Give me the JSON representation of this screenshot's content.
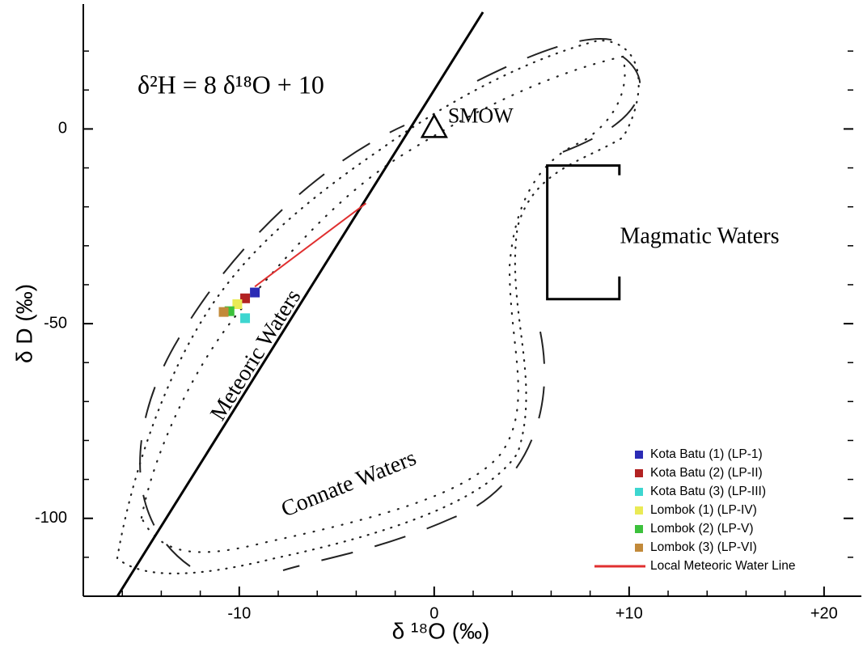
{
  "chart_data": {
    "type": "scatter",
    "xlabel": "δ ¹⁸O (‰)",
    "ylabel": "δ D (‰)",
    "xlim": [
      -18,
      21.5
    ],
    "ylim": [
      -120,
      30
    ],
    "xticks": [
      -10,
      0,
      {
        "value": 10,
        "label": "+10"
      },
      {
        "value": 20,
        "label": "+20"
      }
    ],
    "yticks": [
      -100,
      -50,
      0
    ],
    "xminorticks": [
      -16,
      -14,
      -12,
      -8,
      -6,
      -4,
      -2,
      2,
      4,
      6,
      8,
      12,
      14,
      16,
      18
    ],
    "yminorticks": [
      -110,
      -90,
      -80,
      -70,
      -60,
      -40,
      -30,
      -20,
      -10,
      10,
      20
    ],
    "legend": "lower right",
    "series": [
      {
        "name": "Kota Batu (1) (LP-1)",
        "color": "#2b2bb5",
        "x": [
          -9.2
        ],
        "values": [
          -42
        ]
      },
      {
        "name": "Kota Batu (2) (LP-II)",
        "color": "#b22222",
        "x": [
          -9.7
        ],
        "values": [
          -43.5
        ]
      },
      {
        "name": "Kota Batu (3) (LP-III)",
        "color": "#3dd6d0",
        "x": [
          -9.7
        ],
        "values": [
          -48.6
        ]
      },
      {
        "name": "Lombok (1) (LP-IV)",
        "color": "#eaea55",
        "x": [
          -10.1
        ],
        "values": [
          -45
        ]
      },
      {
        "name": "Lombok (2) (LP-V)",
        "color": "#3cc13c",
        "x": [
          -10.5
        ],
        "values": [
          -46.8
        ]
      },
      {
        "name": "Lombok (3) (LP-VI)",
        "color": "#c28a3a",
        "x": [
          -10.8
        ],
        "values": [
          -47
        ]
      },
      {
        "name": "Local Meteoric Water Line",
        "color": "#e03030",
        "kind": "line",
        "x": [
          -9.2,
          -3.5
        ],
        "values": [
          -40.5,
          -19.1
        ]
      }
    ],
    "global_line": {
      "x": [
        -16.25,
        2.5
      ],
      "values": [
        -120,
        30
      ]
    },
    "smow": {
      "label": "SMOW",
      "x": 0,
      "y": 0
    },
    "magmatic_box": {
      "x": [
        5.8,
        9.5
      ],
      "y": [
        -43.7,
        -9.4
      ]
    },
    "annotations": [
      "δ²H = 8 δ¹⁸O + 10",
      "Meteoric Waters",
      "Connate Waters",
      "Magmatic Waters"
    ]
  }
}
